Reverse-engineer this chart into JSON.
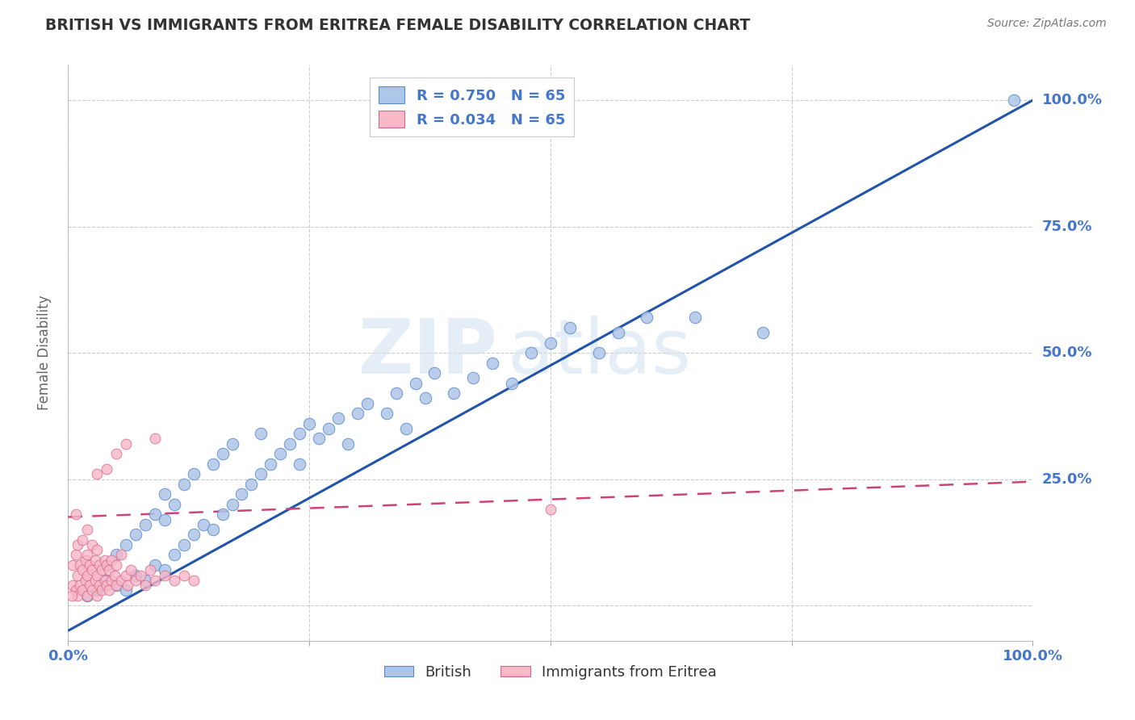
{
  "title": "BRITISH VS IMMIGRANTS FROM ERITREA FEMALE DISABILITY CORRELATION CHART",
  "source": "Source: ZipAtlas.com",
  "ylabel": "Female Disability",
  "watermark_zip": "ZIP",
  "watermark_atlas": "atlas",
  "british_R": 0.75,
  "british_N": 65,
  "eritrea_R": 0.034,
  "eritrea_N": 65,
  "british_color": "#aec6e8",
  "british_edge_color": "#5588cc",
  "british_line_color": "#2255aa",
  "eritrea_color": "#f7b8c8",
  "eritrea_edge_color": "#dd6688",
  "eritrea_line_color": "#cc4477",
  "background_color": "#ffffff",
  "grid_color": "#cccccc",
  "axis_label_color": "#4477cc",
  "title_color": "#333333",
  "xlim": [
    0.0,
    1.0
  ],
  "ylim": [
    -0.07,
    1.07
  ],
  "brit_line_x": [
    0.0,
    1.0
  ],
  "brit_line_y": [
    -0.05,
    1.0
  ],
  "erit_line_x": [
    0.0,
    1.0
  ],
  "erit_line_y": [
    0.175,
    0.245
  ],
  "british_x": [
    0.02,
    0.03,
    0.04,
    0.04,
    0.05,
    0.05,
    0.06,
    0.06,
    0.07,
    0.07,
    0.08,
    0.08,
    0.09,
    0.09,
    0.1,
    0.1,
    0.1,
    0.11,
    0.11,
    0.12,
    0.12,
    0.13,
    0.13,
    0.14,
    0.15,
    0.15,
    0.16,
    0.16,
    0.17,
    0.17,
    0.18,
    0.19,
    0.2,
    0.2,
    0.21,
    0.22,
    0.23,
    0.24,
    0.24,
    0.25,
    0.26,
    0.27,
    0.28,
    0.29,
    0.3,
    0.31,
    0.33,
    0.34,
    0.35,
    0.36,
    0.37,
    0.38,
    0.4,
    0.42,
    0.44,
    0.46,
    0.48,
    0.5,
    0.52,
    0.55,
    0.57,
    0.6,
    0.65,
    0.72,
    0.98
  ],
  "british_y": [
    0.02,
    0.03,
    0.05,
    0.08,
    0.04,
    0.1,
    0.03,
    0.12,
    0.06,
    0.14,
    0.05,
    0.16,
    0.08,
    0.18,
    0.07,
    0.17,
    0.22,
    0.1,
    0.2,
    0.12,
    0.24,
    0.14,
    0.26,
    0.16,
    0.15,
    0.28,
    0.18,
    0.3,
    0.2,
    0.32,
    0.22,
    0.24,
    0.26,
    0.34,
    0.28,
    0.3,
    0.32,
    0.34,
    0.28,
    0.36,
    0.33,
    0.35,
    0.37,
    0.32,
    0.38,
    0.4,
    0.38,
    0.42,
    0.35,
    0.44,
    0.41,
    0.46,
    0.42,
    0.45,
    0.48,
    0.44,
    0.5,
    0.52,
    0.55,
    0.5,
    0.54,
    0.57,
    0.57,
    0.54,
    1.0
  ],
  "eritrea_x": [
    0.005,
    0.005,
    0.008,
    0.008,
    0.01,
    0.01,
    0.01,
    0.012,
    0.012,
    0.015,
    0.015,
    0.015,
    0.018,
    0.018,
    0.02,
    0.02,
    0.02,
    0.02,
    0.022,
    0.022,
    0.025,
    0.025,
    0.025,
    0.028,
    0.028,
    0.03,
    0.03,
    0.03,
    0.032,
    0.032,
    0.035,
    0.035,
    0.038,
    0.038,
    0.04,
    0.04,
    0.042,
    0.042,
    0.045,
    0.045,
    0.048,
    0.05,
    0.05,
    0.055,
    0.055,
    0.06,
    0.062,
    0.065,
    0.07,
    0.075,
    0.08,
    0.085,
    0.09,
    0.1,
    0.11,
    0.12,
    0.13,
    0.03,
    0.04,
    0.05,
    0.06,
    0.09,
    0.004,
    0.008,
    0.5
  ],
  "eritrea_y": [
    0.04,
    0.08,
    0.03,
    0.1,
    0.02,
    0.06,
    0.12,
    0.04,
    0.08,
    0.03,
    0.07,
    0.13,
    0.05,
    0.09,
    0.02,
    0.06,
    0.1,
    0.15,
    0.04,
    0.08,
    0.03,
    0.07,
    0.12,
    0.05,
    0.09,
    0.02,
    0.06,
    0.11,
    0.04,
    0.08,
    0.03,
    0.07,
    0.05,
    0.09,
    0.04,
    0.08,
    0.03,
    0.07,
    0.05,
    0.09,
    0.06,
    0.04,
    0.08,
    0.05,
    0.1,
    0.06,
    0.04,
    0.07,
    0.05,
    0.06,
    0.04,
    0.07,
    0.05,
    0.06,
    0.05,
    0.06,
    0.05,
    0.26,
    0.27,
    0.3,
    0.32,
    0.33,
    0.02,
    0.18,
    0.19
  ]
}
